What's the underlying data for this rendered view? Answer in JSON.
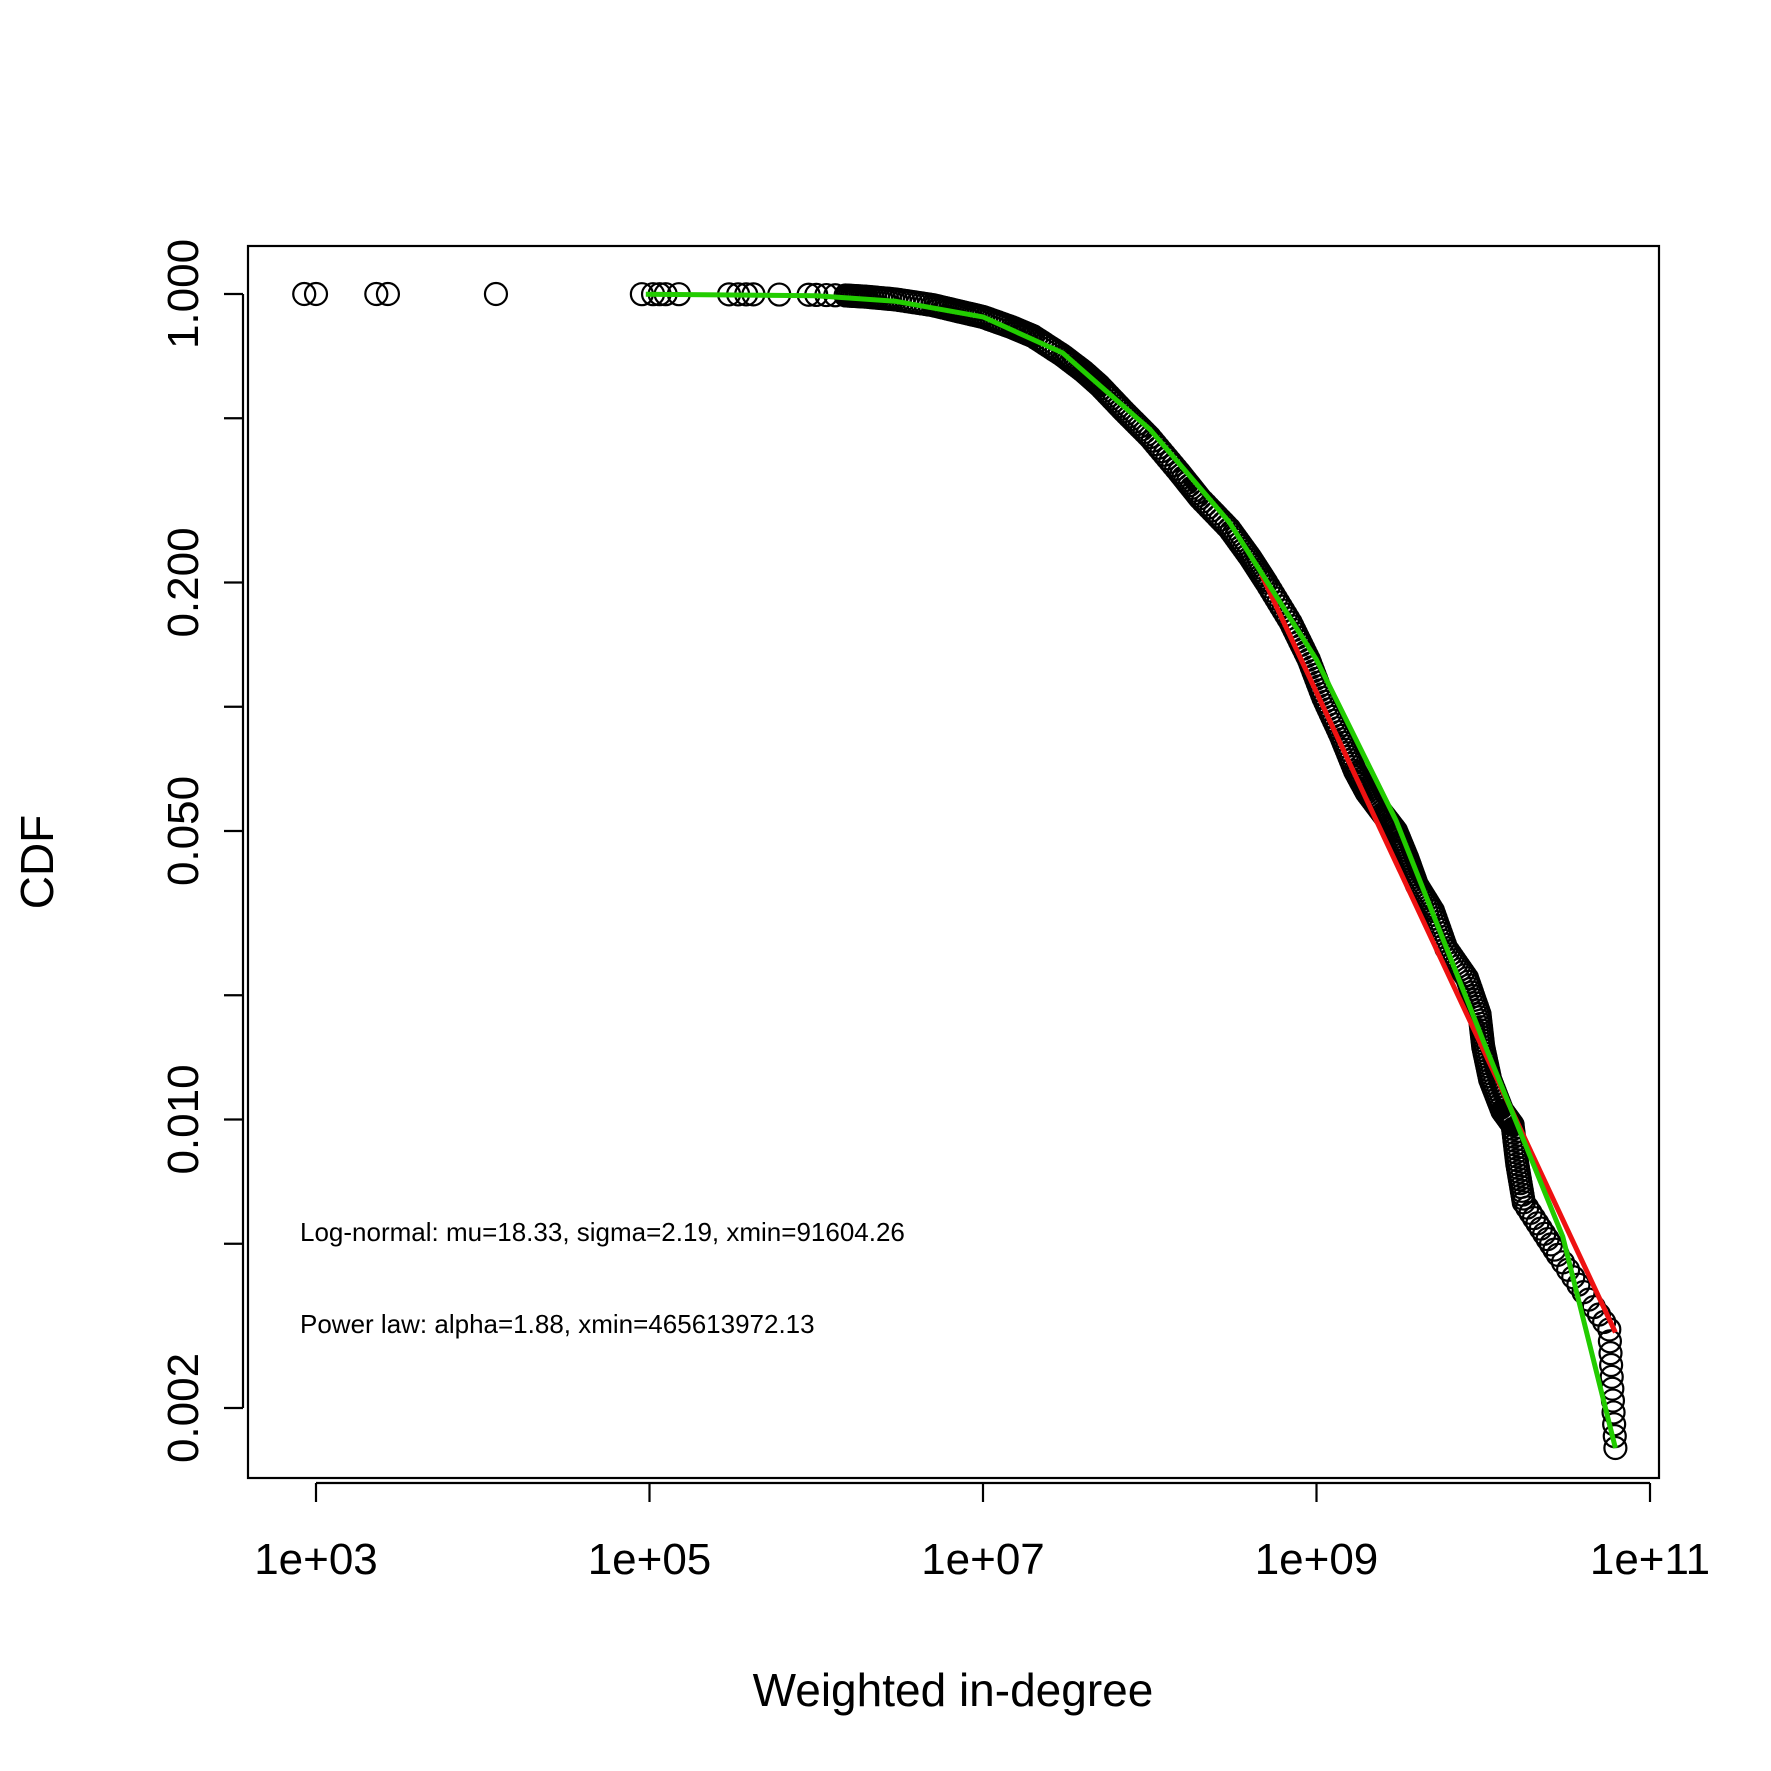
{
  "chart_data": {
    "type": "scatter",
    "xlabel": "Weighted in-degree",
    "ylabel": "CDF",
    "xscale": "log",
    "yscale": "log",
    "xlim": [
      630,
      160000000000
    ],
    "ylim": [
      0.00135,
      1.33
    ],
    "x_ticks": [
      1000,
      100000,
      10000000,
      1000000000,
      100000000000
    ],
    "x_tick_labels": [
      "1e+03",
      "1e+05",
      "1e+07",
      "1e+09",
      "1e+11"
    ],
    "y_ticks": [
      0.002,
      0.005,
      0.01,
      0.02,
      0.05,
      0.1,
      0.2,
      0.5,
      1.0
    ],
    "y_tick_labels": [
      "0.002",
      "",
      "0.010",
      "",
      "0.050",
      "",
      "0.200",
      "",
      "1.000"
    ],
    "grid": false,
    "legend": "none",
    "annotations": [
      "Log-normal: mu=18.33, sigma=2.19, xmin=91604.26",
      "Power law: alpha=1.88, xmin=465613972.13"
    ],
    "series": [
      {
        "marker": "open-circle",
        "color": "#000000",
        "points": [
          [
            850,
            1.0
          ],
          [
            1000,
            1.0
          ],
          [
            2300,
            1.0
          ],
          [
            2700,
            1.0
          ],
          [
            12000,
            1.0
          ],
          [
            90000,
            0.999
          ],
          [
            105000,
            0.999
          ],
          [
            115000,
            0.999
          ],
          [
            125000,
            0.999
          ],
          [
            150000,
            0.999
          ],
          [
            300000,
            0.998
          ],
          [
            340000,
            0.998
          ],
          [
            380000,
            0.998
          ],
          [
            420000,
            0.998
          ],
          [
            600000,
            0.997
          ],
          [
            900000,
            0.996
          ],
          [
            1000000,
            0.995
          ],
          [
            1150000,
            0.994
          ],
          [
            1300000,
            0.993
          ],
          [
            1500000,
            0.992
          ],
          [
            2000000,
            0.985
          ],
          [
            3000000,
            0.97
          ],
          [
            5000000,
            0.94
          ],
          [
            7000000,
            0.91
          ],
          [
            10000000,
            0.88
          ],
          [
            15000000,
            0.83
          ],
          [
            20000000,
            0.79
          ],
          [
            30000000,
            0.71
          ],
          [
            40000000,
            0.65
          ],
          [
            50000000,
            0.6
          ],
          [
            70000000,
            0.52
          ],
          [
            100000000,
            0.45
          ],
          [
            150000000,
            0.37
          ],
          [
            200000000,
            0.32
          ],
          [
            300000000,
            0.27
          ],
          [
            400000000,
            0.23
          ],
          [
            500000000,
            0.2
          ],
          [
            700000000,
            0.16
          ],
          [
            900000000,
            0.13
          ],
          [
            1100000000,
            0.105
          ],
          [
            1400000000,
            0.085
          ],
          [
            1700000000,
            0.07
          ],
          [
            2000000000,
            0.062
          ],
          [
            2500000000,
            0.055
          ],
          [
            3000000000,
            0.05
          ],
          [
            3500000000,
            0.043
          ],
          [
            4000000000,
            0.037
          ],
          [
            5000000000,
            0.032
          ],
          [
            6000000000,
            0.026
          ],
          [
            8000000000,
            0.022
          ],
          [
            9500000000,
            0.018
          ],
          [
            10000000000,
            0.015
          ],
          [
            11000000000,
            0.0125
          ],
          [
            13000000000,
            0.0105
          ],
          [
            15000000000,
            0.0097
          ],
          [
            16000000000,
            0.0078
          ],
          [
            17500000000,
            0.0063
          ],
          [
            28000000000,
            0.0047
          ],
          [
            57000000000,
            0.0031
          ],
          [
            62000000000,
            0.0016
          ]
        ]
      },
      {
        "name": "",
        "type": "line",
        "color": "#ee1111",
        "points": [
          [
            465613972,
            0.21
          ],
          [
            62000000000,
            0.00305
          ]
        ]
      },
      {
        "name": "",
        "type": "line",
        "color": "#22cc00",
        "points": [
          [
            95000,
            0.999
          ],
          [
            1000000,
            0.99
          ],
          [
            3000000,
            0.96
          ],
          [
            10000000,
            0.88
          ],
          [
            30000000,
            0.72
          ],
          [
            100000000,
            0.47
          ],
          [
            300000000,
            0.28
          ],
          [
            1000000000,
            0.13
          ],
          [
            3000000000,
            0.053
          ],
          [
            10000000000,
            0.0155
          ],
          [
            30000000000,
            0.0052
          ],
          [
            62000000000,
            0.0016
          ]
        ]
      }
    ]
  }
}
